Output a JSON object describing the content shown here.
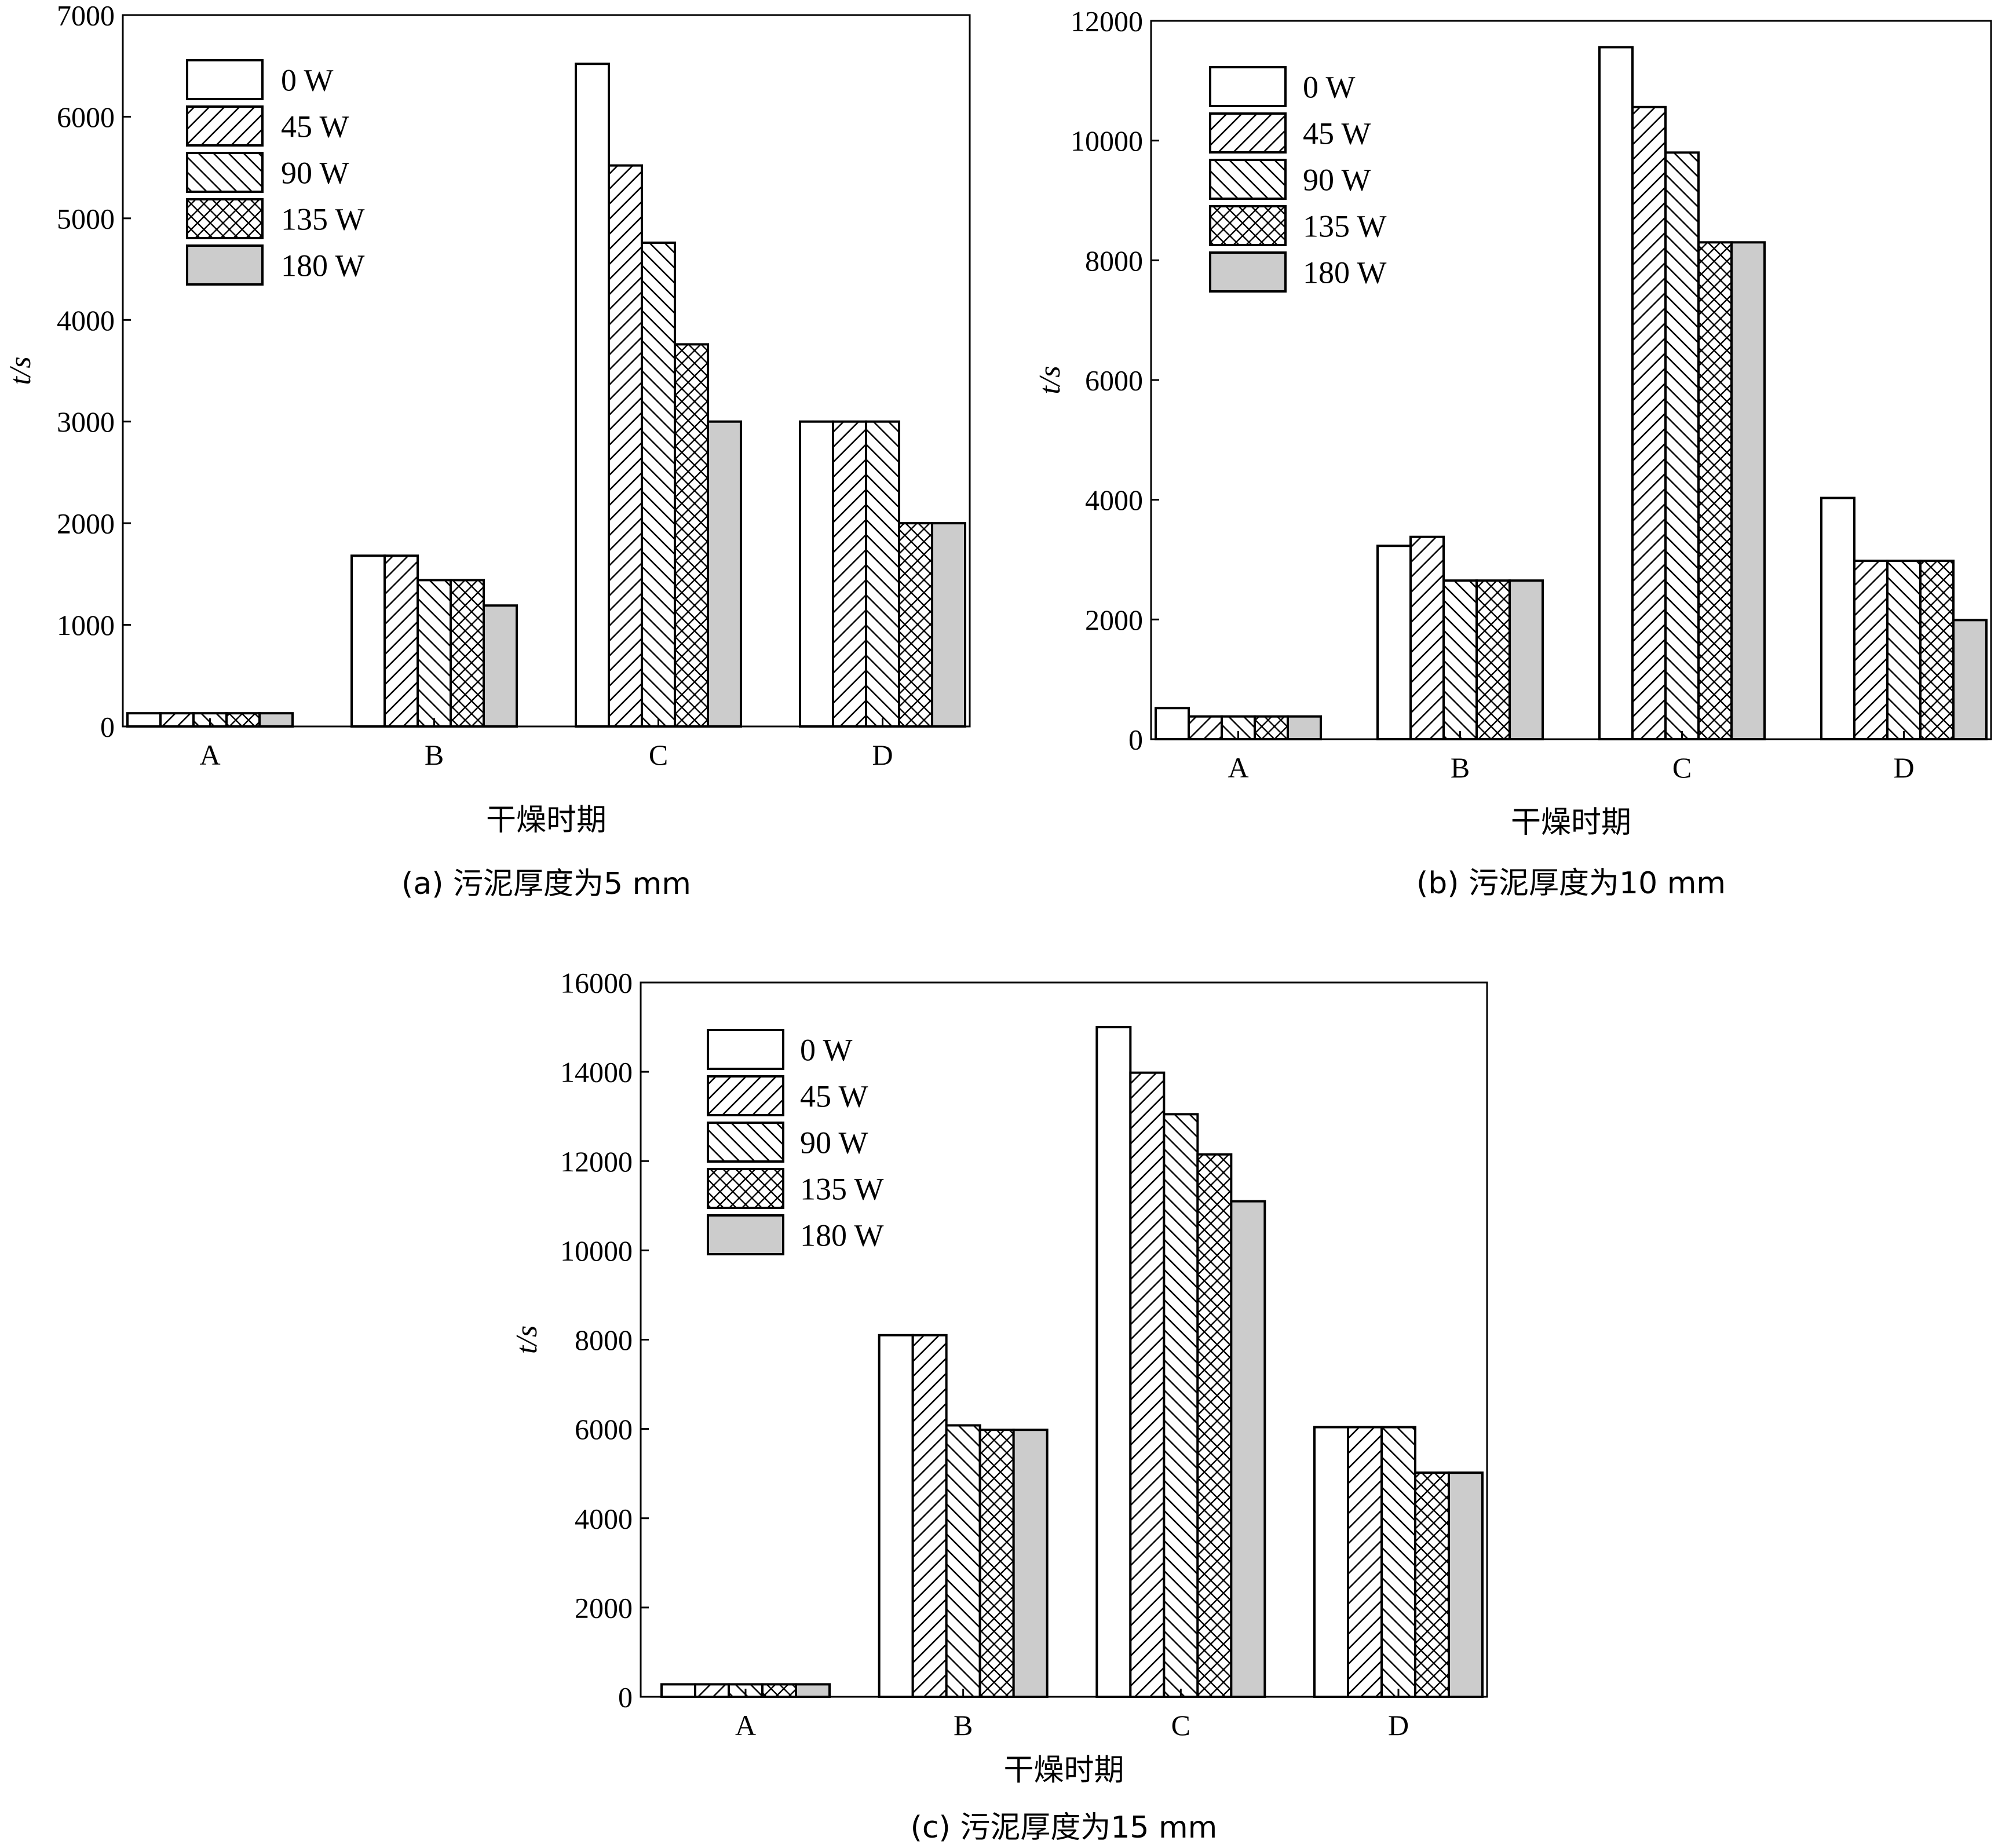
{
  "figure": {
    "legend_labels": [
      "0 W",
      "45 W",
      "90  W",
      "135 W",
      "180 W"
    ],
    "fill_color_180W": "#cccccc"
  },
  "chart_data": [
    {
      "id": "a",
      "type": "bar",
      "caption": "(a) 污泥厚度为5 mm",
      "xlabel": "干燥时期",
      "ylabel": "t/s",
      "categories": [
        "A",
        "B",
        "C",
        "D"
      ],
      "ylim": [
        0,
        7000
      ],
      "yticks": [
        0,
        1000,
        2000,
        3000,
        4000,
        5000,
        6000,
        7000
      ],
      "legend_position": "top-left",
      "series": [
        {
          "name": "0 W",
          "pattern": "none",
          "values": [
            130,
            1680,
            6520,
            3000
          ]
        },
        {
          "name": "45 W",
          "pattern": "diag-up",
          "values": [
            130,
            1680,
            5520,
            3000
          ]
        },
        {
          "name": "90  W",
          "pattern": "diag-down",
          "values": [
            130,
            1440,
            4760,
            3000
          ]
        },
        {
          "name": "135 W",
          "pattern": "cross",
          "values": [
            130,
            1440,
            3760,
            2000
          ]
        },
        {
          "name": "180 W",
          "pattern": "gray",
          "values": [
            130,
            1190,
            3000,
            2000
          ]
        }
      ]
    },
    {
      "id": "b",
      "type": "bar",
      "caption": "(b) 污泥厚度为10 mm",
      "xlabel": "干燥时期",
      "ylabel": "t/s",
      "categories": [
        "A",
        "B",
        "C",
        "D"
      ],
      "ylim": [
        0,
        12000
      ],
      "yticks": [
        0,
        2000,
        4000,
        6000,
        8000,
        10000,
        12000
      ],
      "legend_position": "top-left",
      "series": [
        {
          "name": "0 W",
          "pattern": "none",
          "values": [
            520,
            3230,
            11560,
            4030
          ]
        },
        {
          "name": "45 W",
          "pattern": "diag-up",
          "values": [
            380,
            3380,
            10560,
            2980
          ]
        },
        {
          "name": "90  W",
          "pattern": "diag-down",
          "values": [
            380,
            2650,
            9800,
            2980
          ]
        },
        {
          "name": "135 W",
          "pattern": "cross",
          "values": [
            380,
            2650,
            8300,
            2980
          ]
        },
        {
          "name": "180 W",
          "pattern": "gray",
          "values": [
            380,
            2650,
            8300,
            1990
          ]
        }
      ]
    },
    {
      "id": "c",
      "type": "bar",
      "caption": "(c) 污泥厚度为15 mm",
      "xlabel": "干燥时期",
      "ylabel": "t/s",
      "categories": [
        "A",
        "B",
        "C",
        "D"
      ],
      "ylim": [
        0,
        16000
      ],
      "yticks": [
        0,
        2000,
        4000,
        6000,
        8000,
        10000,
        12000,
        14000,
        16000
      ],
      "legend_position": "top-left",
      "series": [
        {
          "name": "0 W",
          "pattern": "none",
          "values": [
            280,
            8100,
            15000,
            6040
          ]
        },
        {
          "name": "45 W",
          "pattern": "diag-up",
          "values": [
            280,
            8100,
            13980,
            6040
          ]
        },
        {
          "name": "90  W",
          "pattern": "diag-down",
          "values": [
            280,
            6080,
            13050,
            6040
          ]
        },
        {
          "name": "135 W",
          "pattern": "cross",
          "values": [
            280,
            5980,
            12150,
            5020
          ]
        },
        {
          "name": "180 W",
          "pattern": "gray",
          "values": [
            280,
            5980,
            11100,
            5020
          ]
        }
      ]
    }
  ]
}
